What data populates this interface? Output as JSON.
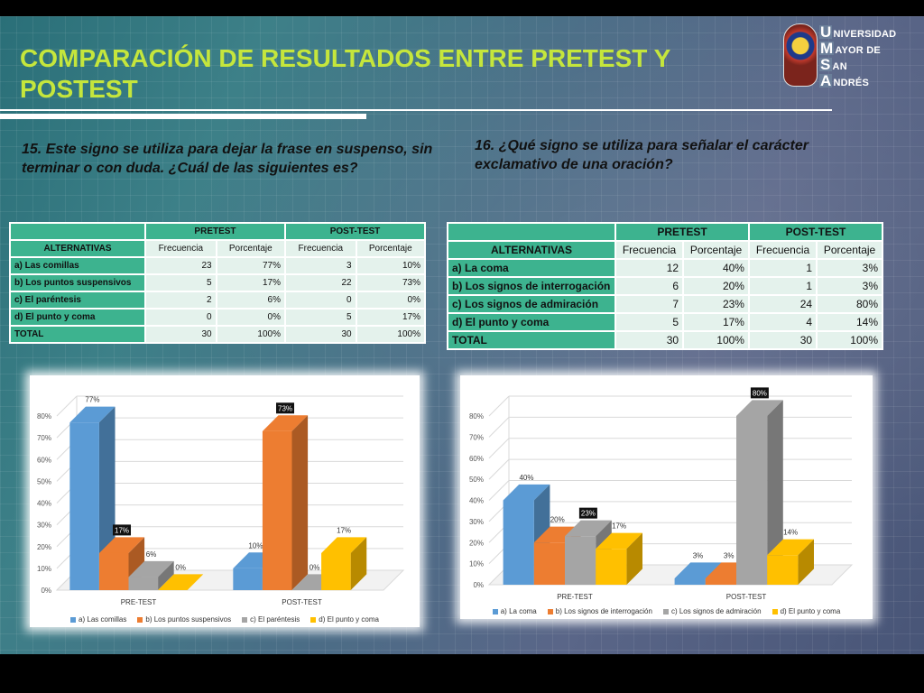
{
  "title": "COMPARACIÓN DE RESULTADOS ENTRE PRETEST Y POSTEST",
  "logo": {
    "words": [
      {
        "cap": "U",
        "rest": "NIVERSIDAD"
      },
      {
        "cap": "M",
        "rest": "AYOR DE"
      },
      {
        "cap": "S",
        "rest": "AN"
      },
      {
        "cap": "A",
        "rest": "NDRÉS"
      }
    ]
  },
  "q15": {
    "question": "15. Este signo se utiliza para dejar la frase en suspenso, sin terminar o con duda. ¿Cuál de las siguientes es?",
    "group_headers": [
      "PRETEST",
      "POST-TEST"
    ],
    "col_label": "ALTERNATIVAS",
    "sub_headers": [
      "Frecuencia",
      "Porcentaje",
      "Frecuencia",
      "Porcentaje"
    ],
    "rows": [
      {
        "label": "a) Las comillas",
        "pre_f": "23",
        "pre_p": "77%",
        "post_f": "3",
        "post_p": "10%"
      },
      {
        "label": "b) Los puntos suspensivos",
        "pre_f": "5",
        "pre_p": "17%",
        "post_f": "22",
        "post_p": "73%"
      },
      {
        "label": "c) El paréntesis",
        "pre_f": "2",
        "pre_p": "6%",
        "post_f": "0",
        "post_p": "0%"
      },
      {
        "label": "d) El punto y coma",
        "pre_f": "0",
        "pre_p": "0%",
        "post_f": "5",
        "post_p": "17%"
      },
      {
        "label": "TOTAL",
        "pre_f": "30",
        "pre_p": "100%",
        "post_f": "30",
        "post_p": "100%"
      }
    ]
  },
  "q16": {
    "question": "16. ¿Qué signo se utiliza para señalar el carácter exclamativo de una oración?",
    "group_headers": [
      "PRETEST",
      "POST-TEST"
    ],
    "col_label": "ALTERNATIVAS",
    "sub_headers": [
      "Frecuencia",
      "Porcentaje",
      "Frecuencia",
      "Porcentaje"
    ],
    "rows": [
      {
        "label": "a) La coma",
        "pre_f": "12",
        "pre_p": "40%",
        "post_f": "1",
        "post_p": "3%"
      },
      {
        "label": "b) Los signos de interrogación",
        "pre_f": "6",
        "pre_p": "20%",
        "post_f": "1",
        "post_p": "3%"
      },
      {
        "label": "c) Los signos de admiración",
        "pre_f": "7",
        "pre_p": "23%",
        "post_f": "24",
        "post_p": "80%"
      },
      {
        "label": "d) El punto y coma",
        "pre_f": "5",
        "pre_p": "17%",
        "post_f": "4",
        "post_p": "14%"
      },
      {
        "label": "TOTAL",
        "pre_f": "30",
        "pre_p": "100%",
        "post_f": "30",
        "post_p": "100%"
      }
    ]
  },
  "chart_data": [
    {
      "type": "bar",
      "categories": [
        "PRE-TEST",
        "POST-TEST"
      ],
      "series": [
        {
          "name": "a) Las comillas",
          "values": [
            77,
            10
          ],
          "labels": [
            "77%",
            "10%"
          ],
          "color": "#5b9bd5"
        },
        {
          "name": "b) Los puntos suspensivos",
          "values": [
            17,
            73
          ],
          "labels": [
            "17%",
            "73%"
          ],
          "color": "#ed7d31"
        },
        {
          "name": "c) El paréntesis",
          "values": [
            6,
            0
          ],
          "labels": [
            "6%",
            "0%"
          ],
          "color": "#a5a5a5"
        },
        {
          "name": "d) El punto y coma",
          "values": [
            0,
            17
          ],
          "labels": [
            "0%",
            "17%"
          ],
          "color": "#ffc000"
        }
      ],
      "yticks": [
        "0%",
        "10%",
        "20%",
        "30%",
        "40%",
        "50%",
        "60%",
        "70%",
        "80%"
      ],
      "ylim": [
        0,
        80
      ],
      "boxed_labels": [
        [
          1,
          0
        ],
        [
          1,
          1
        ]
      ],
      "legend": "bottom"
    },
    {
      "type": "bar",
      "categories": [
        "PRE-TEST",
        "POST-TEST"
      ],
      "series": [
        {
          "name": "a) La coma",
          "values": [
            40,
            3
          ],
          "labels": [
            "40%",
            "3%"
          ],
          "color": "#5b9bd5"
        },
        {
          "name": "b) Los signos de interrogación",
          "values": [
            20,
            3
          ],
          "labels": [
            "20%",
            "3%"
          ],
          "color": "#ed7d31"
        },
        {
          "name": "c) Los signos de admiración",
          "values": [
            23,
            80
          ],
          "labels": [
            "23%",
            "80%"
          ],
          "color": "#a5a5a5"
        },
        {
          "name": "d) El punto y coma",
          "values": [
            17,
            14
          ],
          "labels": [
            "17%",
            "14%"
          ],
          "color": "#ffc000"
        }
      ],
      "yticks": [
        "0%",
        "10%",
        "20%",
        "30%",
        "40%",
        "50%",
        "60%",
        "70%",
        "80%"
      ],
      "ylim": [
        0,
        80
      ],
      "boxed_labels": [
        [
          2,
          0
        ],
        [
          2,
          1
        ]
      ],
      "legend": "bottom"
    }
  ]
}
